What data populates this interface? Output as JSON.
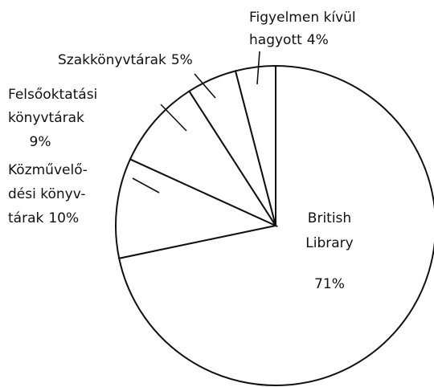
{
  "chart_data": {
    "type": "pie",
    "categories": [
      [
        "British",
        "Library"
      ],
      [
        "Közművelő-",
        "dési könyv-",
        "tárak"
      ],
      [
        "Felsőoktatási",
        "könyvtárak"
      ],
      [
        "Szakkönyvtárak"
      ],
      [
        "Figyelmen kívül",
        "hagyott"
      ]
    ],
    "values": [
      71,
      10,
      9,
      5,
      4
    ],
    "value_labels": [
      "71%",
      "10%",
      "9%",
      "5%",
      "4%"
    ],
    "color": "#ffffff",
    "stroke": "#111111"
  }
}
